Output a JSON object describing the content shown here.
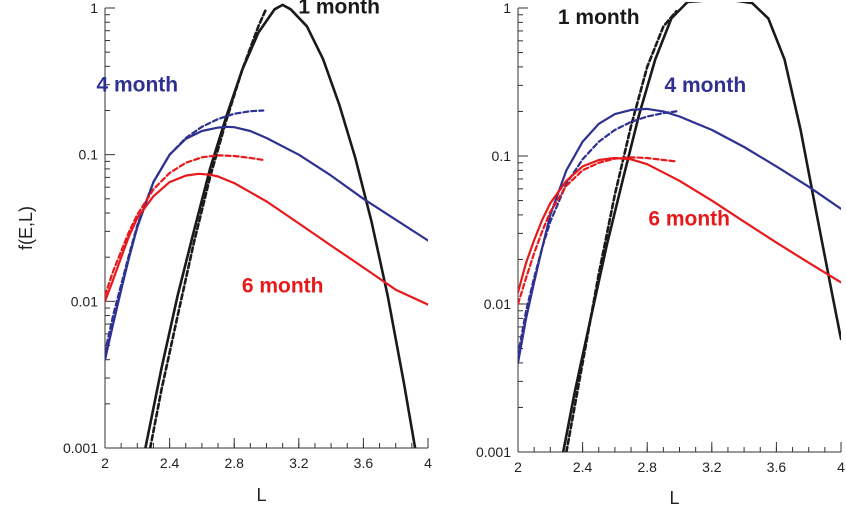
{
  "chart_data": [
    {
      "type": "line",
      "xlabel": "L",
      "ylabel": "f(E,L)",
      "xlim": [
        2,
        4
      ],
      "ylim": [
        0.001,
        1
      ],
      "yscale": "log",
      "x_ticks": [
        "2",
        "2.4",
        "2.8",
        "3.2",
        "3.6",
        "4"
      ],
      "y_ticks": [
        "0.001",
        "0.01",
        "0.1",
        "1"
      ],
      "annotations": [
        {
          "text": "1 month",
          "series": "1 month",
          "x": 3.45,
          "y": 0.92
        },
        {
          "text": "4 month",
          "series": "4 month",
          "x": 2.2,
          "y": 0.27
        },
        {
          "text": "6 month",
          "series": "6 month",
          "x": 3.1,
          "y": 0.0115
        }
      ],
      "series": [
        {
          "name": "1 month",
          "style": "solid",
          "color": "#1a1a1a",
          "x": [
            2.25,
            2.35,
            2.45,
            2.55,
            2.65,
            2.75,
            2.85,
            2.95,
            3.05,
            3.1,
            3.15,
            3.25,
            3.35,
            3.45,
            3.55,
            3.65,
            3.75,
            3.85,
            3.92
          ],
          "y": [
            0.001,
            0.0035,
            0.011,
            0.03,
            0.08,
            0.18,
            0.38,
            0.68,
            0.98,
            1.05,
            0.98,
            0.75,
            0.45,
            0.22,
            0.095,
            0.035,
            0.011,
            0.0028,
            0.001
          ]
        },
        {
          "name": "1 month",
          "style": "dashed",
          "color": "#1a1a1a",
          "x": [
            2.28,
            2.35,
            2.45,
            2.55,
            2.65,
            2.75,
            2.85,
            2.95,
            3.0
          ],
          "y": [
            0.001,
            0.0025,
            0.008,
            0.025,
            0.07,
            0.17,
            0.38,
            0.75,
            1.0
          ]
        },
        {
          "name": "4 month",
          "style": "solid",
          "color": "#2e3192",
          "x": [
            2.0,
            2.05,
            2.1,
            2.15,
            2.2,
            2.3,
            2.4,
            2.5,
            2.6,
            2.7,
            2.75,
            2.8,
            2.9,
            3.0,
            3.2,
            3.4,
            3.6,
            3.8,
            4.0
          ],
          "y": [
            0.004,
            0.007,
            0.012,
            0.02,
            0.032,
            0.065,
            0.1,
            0.128,
            0.145,
            0.153,
            0.155,
            0.154,
            0.145,
            0.13,
            0.1,
            0.072,
            0.05,
            0.036,
            0.026
          ]
        },
        {
          "name": "4 month",
          "style": "dashed",
          "color": "#2e3192",
          "x": [
            2.0,
            2.05,
            2.1,
            2.15,
            2.2,
            2.3,
            2.4,
            2.5,
            2.6,
            2.7,
            2.8,
            2.9,
            2.98
          ],
          "y": [
            0.0045,
            0.008,
            0.013,
            0.021,
            0.033,
            0.065,
            0.1,
            0.13,
            0.155,
            0.175,
            0.19,
            0.198,
            0.2
          ]
        },
        {
          "name": "6 month",
          "style": "solid",
          "color": "#e8191b",
          "x": [
            2.0,
            2.05,
            2.1,
            2.15,
            2.2,
            2.3,
            2.4,
            2.5,
            2.58,
            2.65,
            2.7,
            2.8,
            3.0,
            3.2,
            3.4,
            3.6,
            3.8,
            4.0
          ],
          "y": [
            0.01,
            0.014,
            0.02,
            0.028,
            0.037,
            0.052,
            0.065,
            0.072,
            0.074,
            0.073,
            0.071,
            0.064,
            0.048,
            0.034,
            0.024,
            0.017,
            0.012,
            0.0095
          ]
        },
        {
          "name": "6 month",
          "style": "dashed",
          "color": "#e8191b",
          "x": [
            2.0,
            2.05,
            2.1,
            2.15,
            2.2,
            2.3,
            2.4,
            2.5,
            2.6,
            2.7,
            2.8,
            2.9,
            2.98
          ],
          "y": [
            0.011,
            0.016,
            0.022,
            0.03,
            0.039,
            0.058,
            0.075,
            0.088,
            0.096,
            0.099,
            0.098,
            0.095,
            0.092
          ]
        }
      ]
    },
    {
      "type": "line",
      "xlabel": "L",
      "ylabel": "",
      "xlim": [
        2,
        4
      ],
      "ylim": [
        0.001,
        1
      ],
      "yscale": "log",
      "x_ticks": [
        "2",
        "2.4",
        "2.8",
        "3.2",
        "3.6",
        "4"
      ],
      "y_ticks": [
        "0.001",
        "0.01",
        "0.1",
        "1"
      ],
      "annotations": [
        {
          "text": "1 month",
          "series": "1 month",
          "x": 2.5,
          "y": 0.78
        },
        {
          "text": "4 month",
          "series": "4 month",
          "x": 3.16,
          "y": 0.27
        },
        {
          "text": "6 month",
          "series": "6 month",
          "x": 3.06,
          "y": 0.034
        }
      ],
      "series": [
        {
          "name": "1 month",
          "style": "solid",
          "color": "#1a1a1a",
          "x": [
            2.28,
            2.35,
            2.45,
            2.55,
            2.65,
            2.75,
            2.85,
            2.95,
            3.05,
            3.15,
            3.25,
            3.35,
            3.45,
            3.55,
            3.65,
            3.75,
            3.85,
            3.95,
            4.0
          ],
          "y": [
            0.001,
            0.0025,
            0.008,
            0.025,
            0.07,
            0.19,
            0.45,
            0.85,
            1.1,
            1.12,
            1.12,
            1.12,
            1.08,
            0.85,
            0.45,
            0.15,
            0.04,
            0.011,
            0.0058
          ]
        },
        {
          "name": "1 month",
          "style": "dashed",
          "color": "#1a1a1a",
          "x": [
            2.3,
            2.4,
            2.5,
            2.6,
            2.7,
            2.8,
            2.9,
            2.98
          ],
          "y": [
            0.001,
            0.004,
            0.016,
            0.055,
            0.16,
            0.4,
            0.75,
            0.95
          ]
        },
        {
          "name": "4 month",
          "style": "solid",
          "color": "#2e3192",
          "x": [
            2.0,
            2.05,
            2.1,
            2.15,
            2.2,
            2.3,
            2.4,
            2.5,
            2.6,
            2.7,
            2.8,
            2.9,
            3.0,
            3.2,
            3.4,
            3.6,
            3.8,
            4.0
          ],
          "y": [
            0.004,
            0.008,
            0.014,
            0.024,
            0.04,
            0.08,
            0.125,
            0.165,
            0.192,
            0.205,
            0.208,
            0.2,
            0.185,
            0.15,
            0.115,
            0.085,
            0.062,
            0.044
          ]
        },
        {
          "name": "4 month",
          "style": "dashed",
          "color": "#2e3192",
          "x": [
            2.0,
            2.05,
            2.1,
            2.15,
            2.2,
            2.3,
            2.4,
            2.5,
            2.6,
            2.7,
            2.8,
            2.9,
            2.98
          ],
          "y": [
            0.0045,
            0.009,
            0.015,
            0.024,
            0.036,
            0.065,
            0.095,
            0.125,
            0.15,
            0.17,
            0.185,
            0.195,
            0.2
          ]
        },
        {
          "name": "6 month",
          "style": "solid",
          "color": "#e8191b",
          "x": [
            2.0,
            2.05,
            2.1,
            2.15,
            2.2,
            2.3,
            2.4,
            2.5,
            2.6,
            2.7,
            2.8,
            3.0,
            3.2,
            3.4,
            3.6,
            3.8,
            4.0
          ],
          "y": [
            0.012,
            0.019,
            0.027,
            0.037,
            0.048,
            0.068,
            0.085,
            0.094,
            0.097,
            0.095,
            0.088,
            0.068,
            0.05,
            0.036,
            0.026,
            0.019,
            0.014
          ]
        },
        {
          "name": "6 month",
          "style": "dashed",
          "color": "#e8191b",
          "x": [
            2.0,
            2.05,
            2.1,
            2.15,
            2.2,
            2.3,
            2.4,
            2.5,
            2.6,
            2.7,
            2.8,
            2.9,
            2.98
          ],
          "y": [
            0.01,
            0.015,
            0.022,
            0.031,
            0.042,
            0.063,
            0.08,
            0.09,
            0.096,
            0.098,
            0.097,
            0.094,
            0.092
          ]
        }
      ]
    }
  ]
}
